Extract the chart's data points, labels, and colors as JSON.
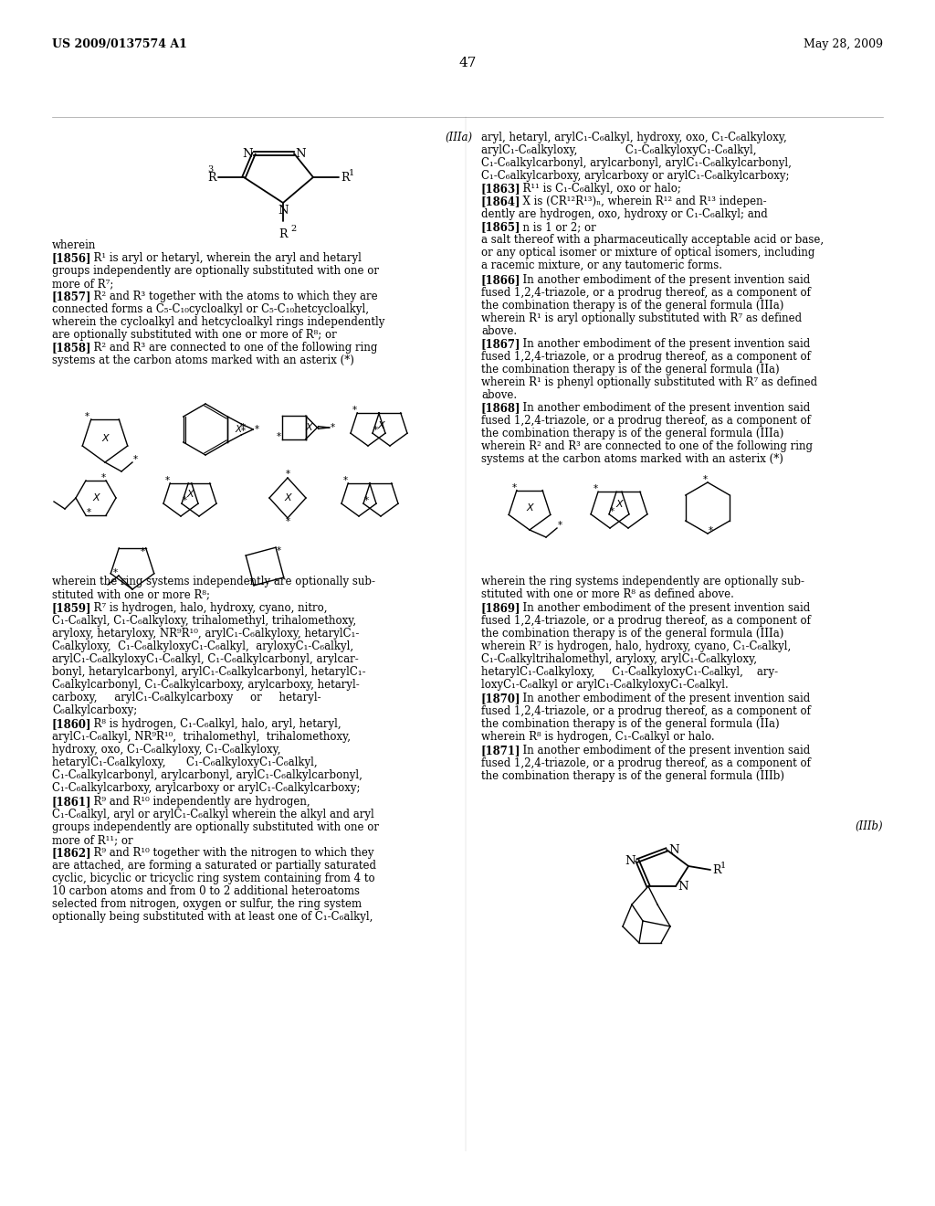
{
  "page_number": "47",
  "header_left": "US 2009/0137574 A1",
  "header_right": "May 28, 2009",
  "background_color": "#ffffff",
  "text_color": "#000000",
  "fs": 8.5,
  "fs_bold": 8.5,
  "lh": 13
}
